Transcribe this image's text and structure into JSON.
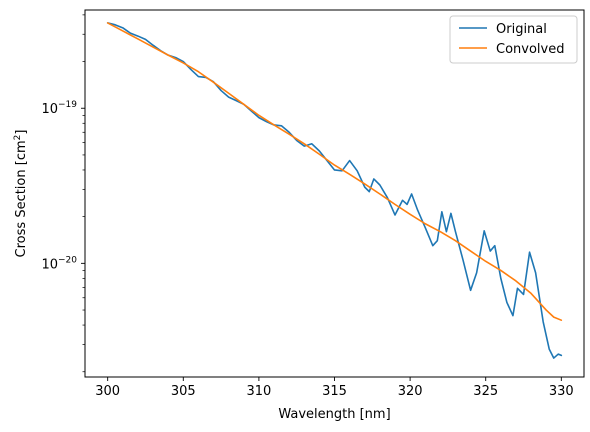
{
  "chart_data": {
    "type": "line",
    "title": "",
    "xlabel": "Wavelength [nm]",
    "ylabel_base": "Cross Section [cm",
    "ylabel_sup": "2",
    "ylabel_end": "]",
    "xlim": [
      298.5,
      331.5
    ],
    "ylim": [
      1.85e-21,
      4.3e-19
    ],
    "yscale": "log",
    "grid": false,
    "legend_position": "upper-right",
    "x_ticks": [
      300,
      305,
      310,
      315,
      320,
      325,
      330
    ],
    "x_tick_labels": [
      "300",
      "305",
      "310",
      "315",
      "320",
      "325",
      "330"
    ],
    "y_major_ticks": [
      {
        "value": 1e-19,
        "mantissa": "10",
        "exponent": "−19"
      },
      {
        "value": 1e-20,
        "mantissa": "10",
        "exponent": "−20"
      }
    ],
    "y_minor_ticks": [
      2e-21,
      3e-21,
      4e-21,
      5e-21,
      6e-21,
      7e-21,
      8e-21,
      9e-21,
      2e-20,
      3e-20,
      4e-20,
      5e-20,
      6e-20,
      7e-20,
      8e-20,
      9e-20,
      2e-19,
      3e-19,
      4e-19
    ],
    "series": [
      {
        "name": "Original",
        "color": "#1f77b4",
        "points": [
          [
            300.0,
            3.55e-19
          ],
          [
            300.5,
            3.45e-19
          ],
          [
            301.0,
            3.3e-19
          ],
          [
            301.5,
            3.05e-19
          ],
          [
            302.0,
            2.92e-19
          ],
          [
            302.5,
            2.78e-19
          ],
          [
            303.0,
            2.55e-19
          ],
          [
            303.5,
            2.35e-19
          ],
          [
            304.0,
            2.2e-19
          ],
          [
            304.5,
            2.12e-19
          ],
          [
            305.0,
            2e-19
          ],
          [
            305.5,
            1.78e-19
          ],
          [
            306.0,
            1.6e-19
          ],
          [
            306.5,
            1.58e-19
          ],
          [
            307.0,
            1.48e-19
          ],
          [
            307.5,
            1.3e-19
          ],
          [
            308.0,
            1.18e-19
          ],
          [
            308.5,
            1.12e-19
          ],
          [
            309.0,
            1.06e-19
          ],
          [
            309.5,
            9.6e-20
          ],
          [
            310.0,
            8.7e-20
          ],
          [
            310.5,
            8.2e-20
          ],
          [
            311.0,
            7.8e-20
          ],
          [
            311.5,
            7.7e-20
          ],
          [
            312.0,
            7e-20
          ],
          [
            312.5,
            6.2e-20
          ],
          [
            313.0,
            5.7e-20
          ],
          [
            313.5,
            5.9e-20
          ],
          [
            314.0,
            5.3e-20
          ],
          [
            314.5,
            4.6e-20
          ],
          [
            315.0,
            4e-20
          ],
          [
            315.5,
            3.95e-20
          ],
          [
            316.0,
            4.6e-20
          ],
          [
            316.5,
            3.95e-20
          ],
          [
            317.0,
            3.1e-20
          ],
          [
            317.3,
            2.9e-20
          ],
          [
            317.6,
            3.5e-20
          ],
          [
            318.0,
            3.2e-20
          ],
          [
            318.5,
            2.65e-20
          ],
          [
            319.0,
            2.05e-20
          ],
          [
            319.5,
            2.55e-20
          ],
          [
            319.8,
            2.4e-20
          ],
          [
            320.1,
            2.8e-20
          ],
          [
            320.5,
            2.2e-20
          ],
          [
            321.0,
            1.7e-20
          ],
          [
            321.5,
            1.3e-20
          ],
          [
            321.8,
            1.4e-20
          ],
          [
            322.1,
            2.15e-20
          ],
          [
            322.4,
            1.6e-20
          ],
          [
            322.7,
            2.1e-20
          ],
          [
            323.0,
            1.6e-20
          ],
          [
            323.5,
            1.05e-20
          ],
          [
            324.0,
            6.7e-21
          ],
          [
            324.4,
            8.7e-21
          ],
          [
            324.9,
            1.62e-20
          ],
          [
            325.3,
            1.2e-20
          ],
          [
            325.6,
            1.3e-20
          ],
          [
            326.0,
            8e-21
          ],
          [
            326.4,
            5.6e-21
          ],
          [
            326.8,
            4.6e-21
          ],
          [
            327.1,
            6.9e-21
          ],
          [
            327.5,
            6.3e-21
          ],
          [
            327.9,
            1.18e-20
          ],
          [
            328.3,
            8.7e-21
          ],
          [
            328.8,
            4.2e-21
          ],
          [
            329.2,
            2.8e-21
          ],
          [
            329.5,
            2.45e-21
          ],
          [
            329.8,
            2.6e-21
          ],
          [
            330.0,
            2.55e-21
          ]
        ]
      },
      {
        "name": "Convolved",
        "color": "#ff7f0e",
        "points": [
          [
            300.0,
            3.55e-19
          ],
          [
            301.0,
            3.15e-19
          ],
          [
            302.0,
            2.8e-19
          ],
          [
            303.0,
            2.48e-19
          ],
          [
            304.0,
            2.2e-19
          ],
          [
            305.0,
            1.96e-19
          ],
          [
            306.0,
            1.72e-19
          ],
          [
            307.0,
            1.47e-19
          ],
          [
            308.0,
            1.25e-19
          ],
          [
            309.0,
            1.06e-19
          ],
          [
            310.0,
            9e-20
          ],
          [
            311.0,
            7.8e-20
          ],
          [
            312.0,
            6.8e-20
          ],
          [
            313.0,
            5.9e-20
          ],
          [
            314.0,
            5.05e-20
          ],
          [
            315.0,
            4.3e-20
          ],
          [
            316.0,
            3.75e-20
          ],
          [
            317.0,
            3.25e-20
          ],
          [
            318.0,
            2.8e-20
          ],
          [
            319.0,
            2.4e-20
          ],
          [
            320.0,
            2.07e-20
          ],
          [
            321.0,
            1.8e-20
          ],
          [
            322.0,
            1.6e-20
          ],
          [
            323.0,
            1.4e-20
          ],
          [
            324.0,
            1.2e-20
          ],
          [
            325.0,
            1.03e-20
          ],
          [
            326.0,
            9e-21
          ],
          [
            327.0,
            7.7e-21
          ],
          [
            328.0,
            6.4e-21
          ],
          [
            329.0,
            5e-21
          ],
          [
            329.5,
            4.5e-21
          ],
          [
            330.0,
            4.3e-21
          ]
        ]
      }
    ]
  }
}
